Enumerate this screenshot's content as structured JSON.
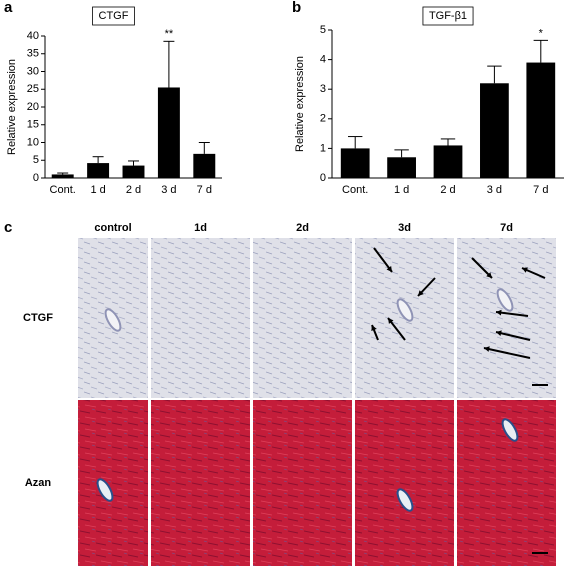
{
  "chart_data": [
    {
      "type": "bar",
      "panel": "a",
      "title": "CTGF",
      "y_label": "Relative expression",
      "categories": [
        "Cont.",
        "1 d",
        "2 d",
        "3 d",
        "7 d"
      ],
      "series": [
        {
          "name": "CTGF",
          "color": "#000000",
          "values": [
            1.0,
            4.2,
            3.5,
            25.5,
            6.8
          ],
          "errors": [
            0.4,
            1.8,
            1.3,
            13.0,
            3.2
          ]
        }
      ],
      "ylim": [
        0,
        40
      ],
      "yticks": [
        0,
        5,
        10,
        15,
        20,
        25,
        30,
        35,
        40
      ],
      "annotations": [
        {
          "text": "**",
          "x": "3 d"
        }
      ]
    },
    {
      "type": "bar",
      "panel": "b",
      "title": "TGF-β1",
      "y_label": "Relative expression",
      "categories": [
        "Cont.",
        "1 d",
        "2 d",
        "3 d",
        "7 d"
      ],
      "series": [
        {
          "name": "TGF-β1",
          "color": "#000000",
          "values": [
            1.0,
            0.7,
            1.1,
            3.2,
            3.9
          ],
          "errors": [
            0.4,
            0.25,
            0.22,
            0.58,
            0.75
          ]
        }
      ],
      "ylim": [
        0,
        5
      ],
      "yticks": [
        0,
        1,
        2,
        3,
        4,
        5
      ],
      "annotations": [
        {
          "text": "*",
          "x": "7 d"
        }
      ]
    }
  ],
  "panel_c": {
    "label": "c",
    "columns": [
      "control",
      "1d",
      "2d",
      "3d",
      "7d"
    ],
    "rows": [
      "CTGF",
      "Azan"
    ]
  }
}
